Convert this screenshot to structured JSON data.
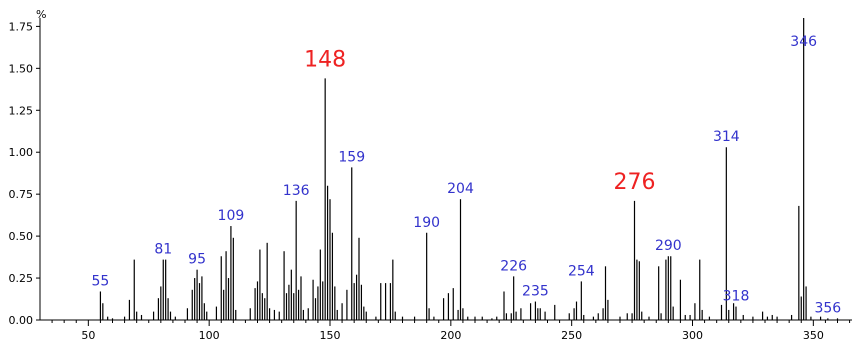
{
  "chart_data": {
    "type": "bar",
    "ylabel": "%",
    "xlim": [
      30,
      366
    ],
    "ylim": [
      0,
      1.8
    ],
    "xticks": [
      50,
      100,
      150,
      200,
      250,
      300,
      350
    ],
    "xtick_labels": [
      "50",
      "100",
      "150",
      "200",
      "250",
      "300",
      "350"
    ],
    "yticks": [
      0,
      0.25,
      0.5,
      0.75,
      1.0,
      1.25,
      1.5,
      1.75
    ],
    "ytick_labels": [
      "0.00",
      "0.25",
      "0.50",
      "0.75",
      "1.00",
      "1.25",
      "1.50",
      "1.75"
    ],
    "grid": false,
    "colors": {
      "axis": "#000000",
      "bars": "#000000",
      "label": "#3333cc",
      "highlight": "#ee2222"
    },
    "peaks": [
      [
        55,
        0.17
      ],
      [
        56,
        0.1
      ],
      [
        58,
        0.02
      ],
      [
        60,
        0.01
      ],
      [
        65,
        0.02
      ],
      [
        67,
        0.12
      ],
      [
        69,
        0.36
      ],
      [
        70,
        0.05
      ],
      [
        72,
        0.03
      ],
      [
        77,
        0.05
      ],
      [
        79,
        0.13
      ],
      [
        80,
        0.2
      ],
      [
        81,
        0.36
      ],
      [
        82,
        0.36
      ],
      [
        83,
        0.13
      ],
      [
        84,
        0.05
      ],
      [
        86,
        0.02
      ],
      [
        91,
        0.07
      ],
      [
        93,
        0.18
      ],
      [
        94,
        0.25
      ],
      [
        95,
        0.3
      ],
      [
        96,
        0.22
      ],
      [
        97,
        0.26
      ],
      [
        98,
        0.1
      ],
      [
        99,
        0.05
      ],
      [
        103,
        0.08
      ],
      [
        105,
        0.38
      ],
      [
        106,
        0.18
      ],
      [
        107,
        0.41
      ],
      [
        108,
        0.25
      ],
      [
        109,
        0.56
      ],
      [
        110,
        0.49
      ],
      [
        111,
        0.06
      ],
      [
        117,
        0.07
      ],
      [
        119,
        0.19
      ],
      [
        120,
        0.23
      ],
      [
        121,
        0.42
      ],
      [
        122,
        0.16
      ],
      [
        123,
        0.13
      ],
      [
        124,
        0.46
      ],
      [
        125,
        0.07
      ],
      [
        127,
        0.06
      ],
      [
        129,
        0.05
      ],
      [
        131,
        0.41
      ],
      [
        132,
        0.16
      ],
      [
        133,
        0.21
      ],
      [
        134,
        0.3
      ],
      [
        135,
        0.16
      ],
      [
        136,
        0.71
      ],
      [
        137,
        0.18
      ],
      [
        138,
        0.26
      ],
      [
        139,
        0.06
      ],
      [
        141,
        0.07
      ],
      [
        143,
        0.24
      ],
      [
        144,
        0.13
      ],
      [
        145,
        0.2
      ],
      [
        146,
        0.42
      ],
      [
        147,
        0.23
      ],
      [
        148,
        1.44
      ],
      [
        149,
        0.8
      ],
      [
        150,
        0.72
      ],
      [
        151,
        0.52
      ],
      [
        152,
        0.2
      ],
      [
        153,
        0.06
      ],
      [
        155,
        0.1
      ],
      [
        157,
        0.18
      ],
      [
        159,
        0.91
      ],
      [
        160,
        0.22
      ],
      [
        161,
        0.27
      ],
      [
        162,
        0.49
      ],
      [
        163,
        0.21
      ],
      [
        164,
        0.08
      ],
      [
        165,
        0.05
      ],
      [
        169,
        0.02
      ],
      [
        171,
        0.22
      ],
      [
        173,
        0.22
      ],
      [
        175,
        0.22
      ],
      [
        176,
        0.36
      ],
      [
        177,
        0.05
      ],
      [
        180,
        0.02
      ],
      [
        185,
        0.02
      ],
      [
        190,
        0.52
      ],
      [
        191,
        0.07
      ],
      [
        193,
        0.02
      ],
      [
        197,
        0.13
      ],
      [
        199,
        0.16
      ],
      [
        201,
        0.19
      ],
      [
        203,
        0.06
      ],
      [
        204,
        0.72
      ],
      [
        205,
        0.07
      ],
      [
        207,
        0.02
      ],
      [
        210,
        0.02
      ],
      [
        213,
        0.02
      ],
      [
        217,
        0.01
      ],
      [
        219,
        0.02
      ],
      [
        222,
        0.17
      ],
      [
        223,
        0.04
      ],
      [
        225,
        0.04
      ],
      [
        226,
        0.26
      ],
      [
        227,
        0.05
      ],
      [
        229,
        0.07
      ],
      [
        233,
        0.1
      ],
      [
        235,
        0.11
      ],
      [
        236,
        0.07
      ],
      [
        237,
        0.07
      ],
      [
        239,
        0.05
      ],
      [
        243,
        0.09
      ],
      [
        249,
        0.04
      ],
      [
        251,
        0.07
      ],
      [
        252,
        0.11
      ],
      [
        254,
        0.23
      ],
      [
        255,
        0.03
      ],
      [
        259,
        0.02
      ],
      [
        261,
        0.04
      ],
      [
        263,
        0.07
      ],
      [
        264,
        0.32
      ],
      [
        265,
        0.12
      ],
      [
        270,
        0.02
      ],
      [
        273,
        0.04
      ],
      [
        275,
        0.04
      ],
      [
        276,
        0.71
      ],
      [
        277,
        0.36
      ],
      [
        278,
        0.35
      ],
      [
        279,
        0.05
      ],
      [
        282,
        0.02
      ],
      [
        286,
        0.32
      ],
      [
        287,
        0.04
      ],
      [
        289,
        0.36
      ],
      [
        290,
        0.38
      ],
      [
        291,
        0.38
      ],
      [
        292,
        0.08
      ],
      [
        295,
        0.24
      ],
      [
        297,
        0.03
      ],
      [
        299,
        0.03
      ],
      [
        301,
        0.1
      ],
      [
        303,
        0.36
      ],
      [
        304,
        0.06
      ],
      [
        307,
        0.02
      ],
      [
        312,
        0.09
      ],
      [
        314,
        1.03
      ],
      [
        315,
        0.06
      ],
      [
        317,
        0.1
      ],
      [
        318,
        0.08
      ],
      [
        321,
        0.03
      ],
      [
        325,
        0.02
      ],
      [
        329,
        0.05
      ],
      [
        331,
        0.02
      ],
      [
        333,
        0.03
      ],
      [
        335,
        0.02
      ],
      [
        341,
        0.03
      ],
      [
        344,
        0.68
      ],
      [
        345,
        0.14
      ],
      [
        346,
        1.8
      ],
      [
        347,
        0.2
      ],
      [
        349,
        0.02
      ],
      [
        353,
        0.02
      ],
      [
        356,
        0.01
      ],
      [
        360,
        0.01
      ]
    ],
    "annotations": [
      {
        "label": "55",
        "x": 55,
        "color": "#3333cc",
        "size": "small"
      },
      {
        "label": "81",
        "x": 81,
        "color": "#3333cc",
        "size": "small"
      },
      {
        "label": "95",
        "x": 95,
        "color": "#3333cc",
        "size": "small"
      },
      {
        "label": "109",
        "x": 109,
        "color": "#3333cc",
        "size": "small"
      },
      {
        "label": "136",
        "x": 136,
        "color": "#3333cc",
        "size": "small"
      },
      {
        "label": "148",
        "x": 148,
        "color": "#ee2222",
        "size": "large"
      },
      {
        "label": "159",
        "x": 159,
        "color": "#3333cc",
        "size": "small"
      },
      {
        "label": "190",
        "x": 190,
        "color": "#3333cc",
        "size": "small"
      },
      {
        "label": "204",
        "x": 204,
        "color": "#3333cc",
        "size": "small"
      },
      {
        "label": "226",
        "x": 226,
        "color": "#3333cc",
        "size": "small"
      },
      {
        "label": "235",
        "x": 235,
        "color": "#3333cc",
        "size": "small"
      },
      {
        "label": "254",
        "x": 254,
        "color": "#3333cc",
        "size": "small"
      },
      {
        "label": "276",
        "x": 276,
        "color": "#ee2222",
        "size": "large"
      },
      {
        "label": "290",
        "x": 290,
        "color": "#3333cc",
        "size": "small"
      },
      {
        "label": "314",
        "x": 314,
        "color": "#3333cc",
        "size": "small"
      },
      {
        "label": "318",
        "x": 318,
        "color": "#3333cc",
        "size": "small"
      },
      {
        "label": "346",
        "x": 346,
        "color": "#3333cc",
        "size": "small"
      },
      {
        "label": "356",
        "x": 356,
        "color": "#3333cc",
        "size": "small"
      }
    ]
  }
}
